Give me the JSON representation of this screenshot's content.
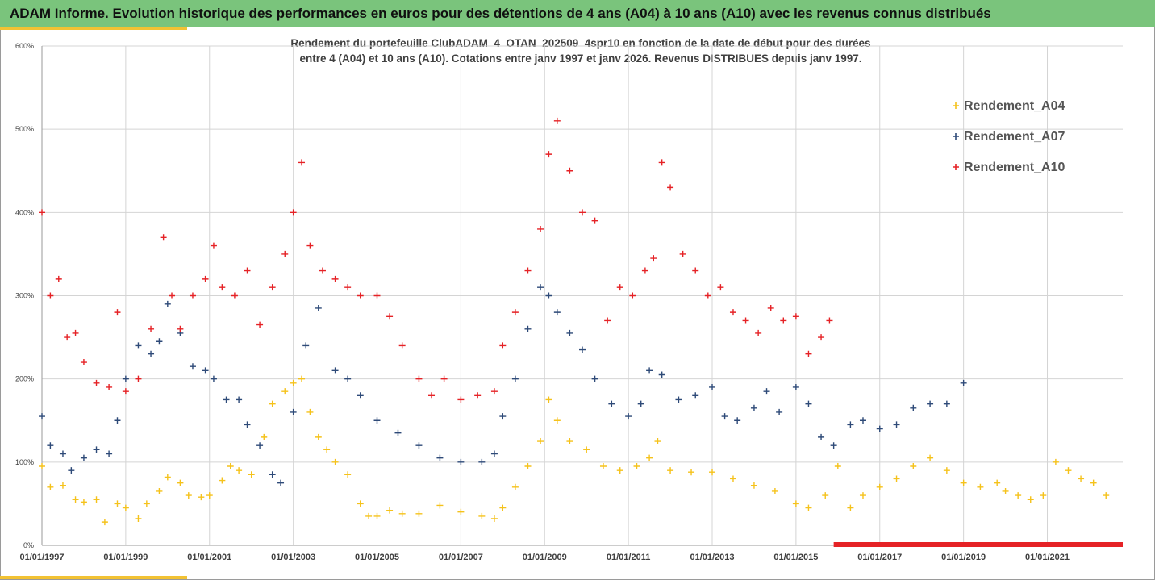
{
  "header": {
    "title": "ADAM Informe. Evolution historique des performances en euros pour des détentions de 4 ans (A04) à 10 ans (A10) avec les revenus connus distribués"
  },
  "chart_data": {
    "type": "scatter",
    "subtitle_line1": "Rendement du portefeuille ClubADAM_4_OTAN_202509_4spr10  en fonction de la date de début pour des durées",
    "subtitle_line2": "entre 4 (A04) et 10 ans (A10). Cotations entre janv 1997 et janv 2026. Revenus DISTRIBUES depuis janv 1997.",
    "xlabel": "",
    "ylabel": "",
    "x_unit": "years",
    "xlim": [
      1997.0,
      2022.8
    ],
    "ylim": [
      0,
      600
    ],
    "y_ticks": [
      0,
      100,
      200,
      300,
      400,
      500,
      600
    ],
    "y_tick_labels": [
      "0%",
      "100%",
      "200%",
      "300%",
      "400%",
      "500%",
      "600%"
    ],
    "x_ticks": [
      1997,
      1999,
      2001,
      2003,
      2005,
      2007,
      2009,
      2011,
      2013,
      2015,
      2017,
      2019,
      2021
    ],
    "x_tick_labels": [
      "01/01/1997",
      "01/01/1999",
      "01/01/2001",
      "01/01/2003",
      "01/01/2005",
      "01/01/2007",
      "01/01/2009",
      "01/01/2011",
      "01/01/2013",
      "01/01/2015",
      "01/01/2017",
      "01/01/2019",
      "01/01/2021"
    ],
    "grid": true,
    "legend_position": "top-right",
    "marker": "plus",
    "series": [
      {
        "name": "Rendement_A04",
        "color": "#f5c21b",
        "x": [
          1997.0,
          1997.2,
          1997.5,
          1997.8,
          1998.0,
          1998.3,
          1998.5,
          1998.8,
          1999.0,
          1999.3,
          1999.5,
          1999.8,
          2000.0,
          2000.3,
          2000.5,
          2000.8,
          2001.0,
          2001.3,
          2001.5,
          2001.7,
          2002.0,
          2002.3,
          2002.5,
          2002.8,
          2003.0,
          2003.2,
          2003.4,
          2003.6,
          2003.8,
          2004.0,
          2004.3,
          2004.6,
          2004.8,
          2005.0,
          2005.3,
          2005.6,
          2006.0,
          2006.5,
          2007.0,
          2007.5,
          2007.8,
          2008.0,
          2008.3,
          2008.6,
          2008.9,
          2009.1,
          2009.3,
          2009.6,
          2010.0,
          2010.4,
          2010.8,
          2011.2,
          2011.5,
          2011.7,
          2012.0,
          2012.5,
          2013.0,
          2013.5,
          2014.0,
          2014.5,
          2015.0,
          2015.3,
          2015.7,
          2016.0,
          2016.3,
          2016.6,
          2017.0,
          2017.4,
          2017.8,
          2018.2,
          2018.6,
          2019.0,
          2019.4,
          2019.8,
          2020.0,
          2020.3,
          2020.6,
          2020.9,
          2021.2,
          2021.5,
          2021.8,
          2022.1,
          2022.4
        ],
        "values": [
          95,
          70,
          72,
          55,
          52,
          55,
          28,
          50,
          45,
          32,
          50,
          65,
          82,
          75,
          60,
          58,
          60,
          78,
          95,
          90,
          85,
          130,
          170,
          185,
          195,
          200,
          160,
          130,
          115,
          100,
          85,
          50,
          35,
          35,
          42,
          38,
          38,
          48,
          40,
          35,
          32,
          45,
          70,
          95,
          125,
          175,
          150,
          125,
          115,
          95,
          90,
          95,
          105,
          125,
          90,
          88,
          88,
          80,
          72,
          65,
          50,
          45,
          60,
          95,
          45,
          60,
          70,
          80,
          95,
          105,
          90,
          75,
          70,
          75,
          65,
          60,
          55,
          60,
          100,
          90,
          80,
          75,
          60
        ]
      },
      {
        "name": "Rendement_A07",
        "color": "#2e4a78",
        "x": [
          1997.0,
          1997.2,
          1997.5,
          1997.7,
          1998.0,
          1998.3,
          1998.6,
          1998.8,
          1999.0,
          1999.3,
          1999.6,
          1999.8,
          2000.0,
          2000.3,
          2000.6,
          2000.9,
          2001.1,
          2001.4,
          2001.7,
          2001.9,
          2002.2,
          2002.5,
          2002.7,
          2003.0,
          2003.3,
          2003.6,
          2004.0,
          2004.3,
          2004.6,
          2005.0,
          2005.5,
          2006.0,
          2006.5,
          2007.0,
          2007.5,
          2007.8,
          2008.0,
          2008.3,
          2008.6,
          2008.9,
          2009.1,
          2009.3,
          2009.6,
          2009.9,
          2010.2,
          2010.6,
          2011.0,
          2011.3,
          2011.5,
          2011.8,
          2012.2,
          2012.6,
          2013.0,
          2013.3,
          2013.6,
          2014.0,
          2014.3,
          2014.6,
          2015.0,
          2015.3,
          2015.6,
          2015.9,
          2016.3,
          2016.6,
          2017.0,
          2017.4,
          2017.8,
          2018.2,
          2018.6,
          2019.0
        ],
        "values": [
          155,
          120,
          110,
          90,
          105,
          115,
          110,
          150,
          200,
          240,
          230,
          245,
          290,
          255,
          215,
          210,
          200,
          175,
          175,
          145,
          120,
          85,
          75,
          160,
          240,
          285,
          210,
          200,
          180,
          150,
          135,
          120,
          105,
          100,
          100,
          110,
          155,
          200,
          260,
          310,
          300,
          280,
          255,
          235,
          200,
          170,
          155,
          170,
          210,
          205,
          175,
          180,
          190,
          155,
          150,
          165,
          185,
          160,
          190,
          170,
          130,
          120,
          145,
          150,
          140,
          145,
          165,
          170,
          170,
          195
        ]
      },
      {
        "name": "Rendement_A10",
        "color": "#e52226",
        "x": [
          1997.0,
          1997.2,
          1997.4,
          1997.6,
          1997.8,
          1998.0,
          1998.3,
          1998.6,
          1998.8,
          1999.0,
          1999.3,
          1999.6,
          1999.9,
          2000.1,
          2000.3,
          2000.6,
          2000.9,
          2001.1,
          2001.3,
          2001.6,
          2001.9,
          2002.2,
          2002.5,
          2002.8,
          2003.0,
          2003.2,
          2003.4,
          2003.7,
          2004.0,
          2004.3,
          2004.6,
          2005.0,
          2005.3,
          2005.6,
          2006.0,
          2006.3,
          2006.6,
          2007.0,
          2007.4,
          2007.8,
          2008.0,
          2008.3,
          2008.6,
          2008.9,
          2009.1,
          2009.3,
          2009.6,
          2009.9,
          2010.2,
          2010.5,
          2010.8,
          2011.1,
          2011.4,
          2011.6,
          2011.8,
          2012.0,
          2012.3,
          2012.6,
          2012.9,
          2013.2,
          2013.5,
          2013.8,
          2014.1,
          2014.4,
          2014.7,
          2015.0,
          2015.3,
          2015.6,
          2015.8
        ],
        "values": [
          400,
          300,
          320,
          250,
          255,
          220,
          195,
          190,
          280,
          185,
          200,
          260,
          370,
          300,
          260,
          300,
          320,
          360,
          310,
          300,
          330,
          265,
          310,
          350,
          400,
          460,
          360,
          330,
          320,
          310,
          300,
          300,
          275,
          240,
          200,
          180,
          200,
          175,
          180,
          185,
          240,
          280,
          330,
          380,
          470,
          510,
          450,
          400,
          390,
          270,
          310,
          300,
          330,
          345,
          460,
          430,
          350,
          330,
          300,
          310,
          280,
          270,
          255,
          285,
          270,
          275,
          230,
          250,
          270
        ]
      }
    ],
    "zero_band": {
      "color": "#e52226",
      "x_start": 2015.9,
      "x_end": 2022.8,
      "value": 0
    }
  }
}
